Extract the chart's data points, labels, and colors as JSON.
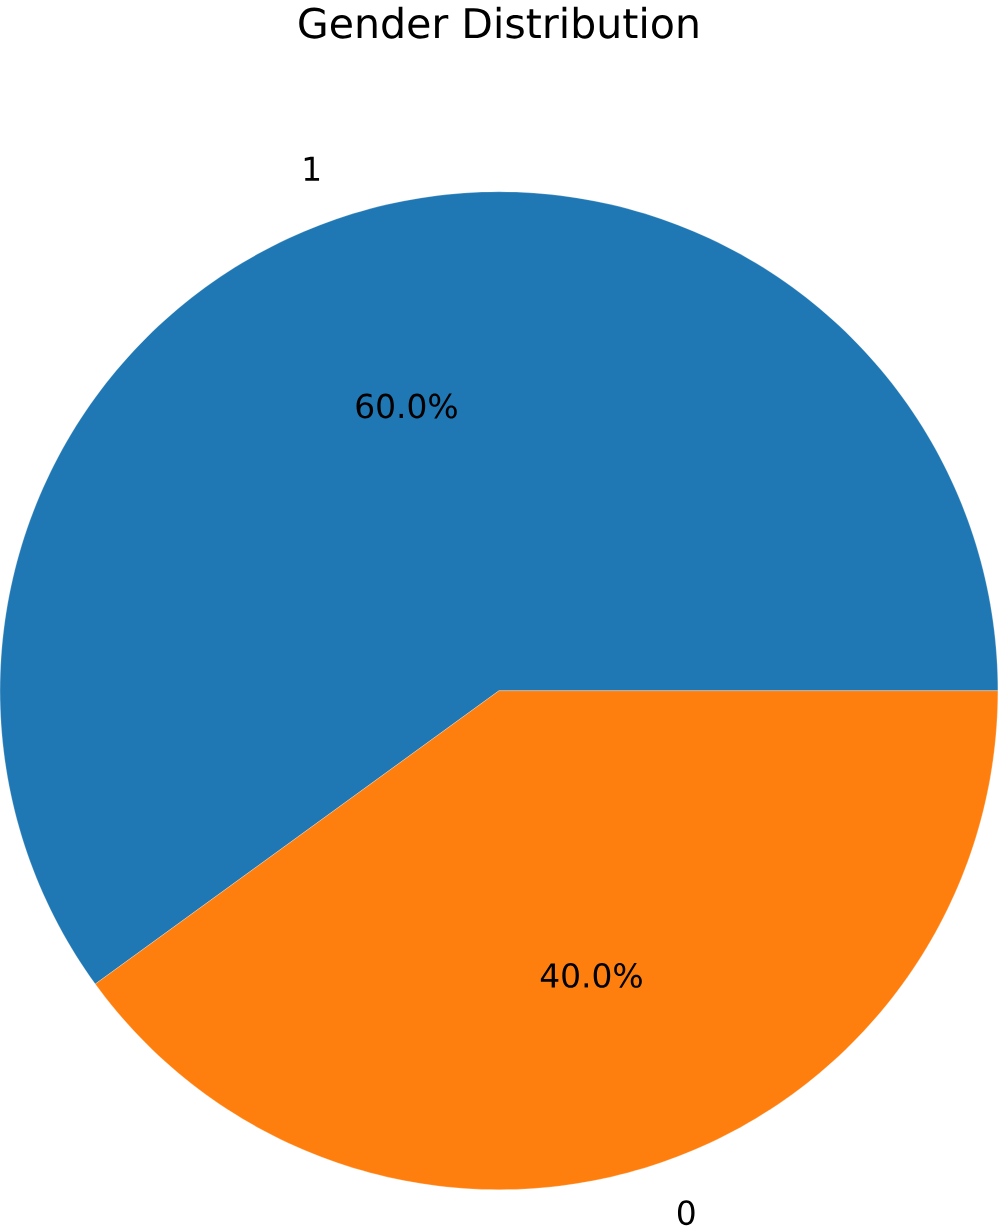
{
  "chart_data": {
    "type": "pie",
    "title": "Gender Distribution",
    "categories": [
      "1",
      "0"
    ],
    "values": [
      60,
      40
    ],
    "value_labels": [
      "60.0%",
      "40.0%"
    ],
    "colors": [
      "#1f77b4",
      "#ff7f0e"
    ]
  }
}
